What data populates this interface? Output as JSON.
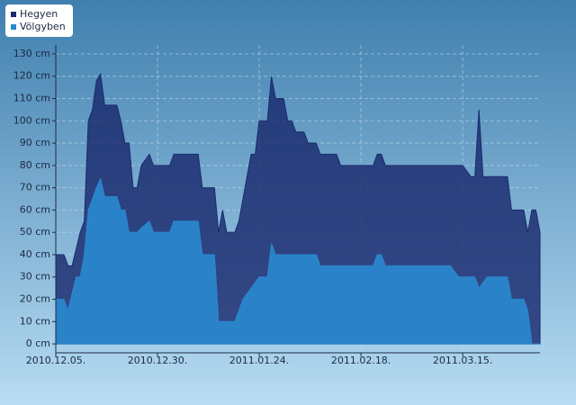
{
  "chart_data": {
    "type": "area",
    "xlim": [
      "2010-12-05",
      "2011-04-03"
    ],
    "xticks": [
      {
        "value": "2010-12-05",
        "label": "2010.12.05."
      },
      {
        "value": "2010-12-30",
        "label": "2010.12.30."
      },
      {
        "value": "2011-01-24",
        "label": "2011.01.24."
      },
      {
        "value": "2011-02-18",
        "label": "2011.02.18."
      },
      {
        "value": "2011-03-15",
        "label": "2011.03.15."
      }
    ],
    "ylim": [
      -4,
      134
    ],
    "yticks": [
      {
        "value": 0,
        "label": "0 cm"
      },
      {
        "value": 10,
        "label": "10 cm"
      },
      {
        "value": 20,
        "label": "20 cm"
      },
      {
        "value": 30,
        "label": "30 cm"
      },
      {
        "value": 40,
        "label": "40 cm"
      },
      {
        "value": 50,
        "label": "50 cm"
      },
      {
        "value": 60,
        "label": "60 cm"
      },
      {
        "value": 70,
        "label": "70 cm"
      },
      {
        "value": 80,
        "label": "80 cm"
      },
      {
        "value": 90,
        "label": "90 cm"
      },
      {
        "value": 100,
        "label": "100 cm"
      },
      {
        "value": 110,
        "label": "110 cm"
      },
      {
        "value": 120,
        "label": "120 cm"
      },
      {
        "value": 130,
        "label": "130 cm"
      }
    ],
    "grid": true,
    "legend": "top-left",
    "series": [
      {
        "name": "Hegyen",
        "color": "#1a2a6e",
        "x": [
          "2010-12-05",
          "2010-12-07",
          "2010-12-08",
          "2010-12-09",
          "2010-12-11",
          "2010-12-12",
          "2010-12-13",
          "2010-12-14",
          "2010-12-15",
          "2010-12-16",
          "2010-12-17",
          "2010-12-20",
          "2010-12-21",
          "2010-12-22",
          "2010-12-23",
          "2010-12-24",
          "2010-12-25",
          "2010-12-26",
          "2010-12-28",
          "2010-12-29",
          "2011-01-02",
          "2011-01-03",
          "2011-01-09",
          "2011-01-10",
          "2011-01-13",
          "2011-01-14",
          "2011-01-15",
          "2011-01-16",
          "2011-01-18",
          "2011-01-19",
          "2011-01-22",
          "2011-01-23",
          "2011-01-24",
          "2011-01-26",
          "2011-01-27",
          "2011-01-28",
          "2011-01-30",
          "2011-01-31",
          "2011-02-01",
          "2011-02-02",
          "2011-02-04",
          "2011-02-05",
          "2011-02-07",
          "2011-02-08",
          "2011-02-12",
          "2011-02-13",
          "2011-02-21",
          "2011-02-22",
          "2011-02-23",
          "2011-02-24",
          "2011-03-15",
          "2011-03-17",
          "2011-03-18",
          "2011-03-19",
          "2011-03-20",
          "2011-03-26",
          "2011-03-27",
          "2011-03-30",
          "2011-03-31",
          "2011-04-01",
          "2011-04-02",
          "2011-04-03"
        ],
        "values": [
          40,
          40,
          35,
          35,
          50,
          55,
          100,
          105,
          118,
          121,
          107,
          107,
          100,
          90,
          90,
          70,
          70,
          80,
          85,
          80,
          80,
          85,
          85,
          70,
          70,
          50,
          60,
          50,
          50,
          55,
          85,
          85,
          100,
          100,
          120,
          110,
          110,
          100,
          100,
          95,
          95,
          90,
          90,
          85,
          85,
          80,
          80,
          85,
          85,
          80,
          80,
          75,
          75,
          105,
          75,
          75,
          60,
          60,
          50,
          60,
          60,
          50
        ]
      },
      {
        "name": "Völgyben",
        "color": "#2a86cc",
        "x": [
          "2010-12-05",
          "2010-12-07",
          "2010-12-08",
          "2010-12-10",
          "2010-12-11",
          "2010-12-12",
          "2010-12-13",
          "2010-12-15",
          "2010-12-16",
          "2010-12-17",
          "2010-12-20",
          "2010-12-21",
          "2010-12-22",
          "2010-12-23",
          "2010-12-25",
          "2010-12-26",
          "2010-12-28",
          "2010-12-29",
          "2011-01-02",
          "2011-01-03",
          "2011-01-09",
          "2011-01-10",
          "2011-01-13",
          "2011-01-14",
          "2011-01-18",
          "2011-01-20",
          "2011-01-22",
          "2011-01-24",
          "2011-01-26",
          "2011-01-27",
          "2011-01-28",
          "2011-02-07",
          "2011-02-08",
          "2011-02-21",
          "2011-02-22",
          "2011-02-23",
          "2011-02-24",
          "2011-03-12",
          "2011-03-14",
          "2011-03-18",
          "2011-03-19",
          "2011-03-21",
          "2011-03-26",
          "2011-03-27",
          "2011-03-30",
          "2011-03-31",
          "2011-04-01",
          "2011-04-03"
        ],
        "values": [
          20,
          20,
          15,
          30,
          30,
          40,
          60,
          70,
          74,
          66,
          66,
          60,
          60,
          50,
          50,
          52,
          55,
          50,
          50,
          55,
          55,
          40,
          40,
          10,
          10,
          20,
          25,
          30,
          30,
          45,
          40,
          40,
          35,
          35,
          40,
          40,
          35,
          35,
          30,
          30,
          25,
          30,
          30,
          20,
          20,
          15,
          0,
          0
        ]
      }
    ]
  }
}
